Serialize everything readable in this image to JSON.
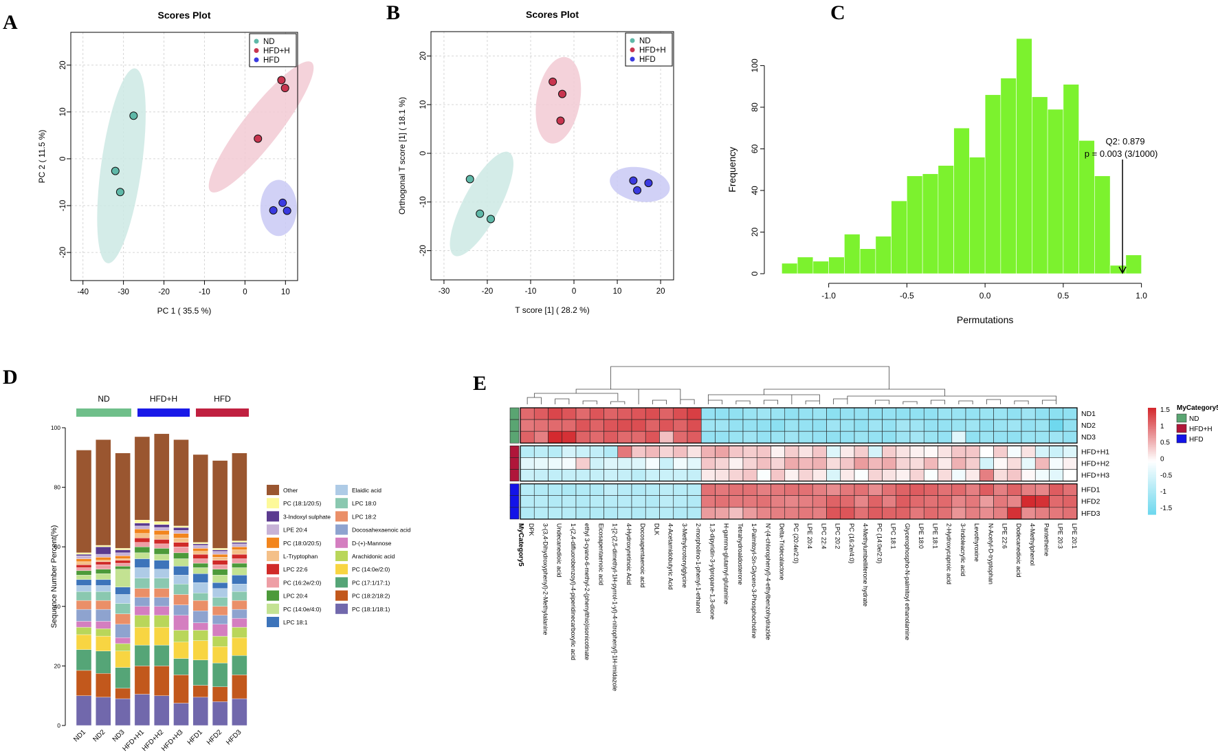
{
  "panel_labels": [
    "A",
    "B",
    "C",
    "D",
    "E"
  ],
  "chart_data": [
    {
      "id": "A",
      "type": "scatter",
      "title": "Scores Plot",
      "xlabel": "PC 1 ( 35.5 %)",
      "ylabel": "PC 2 ( 11.5 %)",
      "xlim": [
        -43,
        13
      ],
      "ylim": [
        -26,
        27
      ],
      "xticks": [
        -40,
        -30,
        -20,
        -10,
        0,
        10
      ],
      "yticks": [
        -20,
        -10,
        0,
        10,
        20
      ],
      "legend": [
        "ND",
        "HFD+H",
        "HFD"
      ],
      "legend_position": "top-right",
      "series": [
        {
          "name": "ND",
          "color": "#5fb8a8",
          "ellipse": "#cde9e4",
          "points": [
            [
              -27.5,
              9.2
            ],
            [
              -32,
              -2.6
            ],
            [
              -30.8,
              -7.1
            ]
          ]
        },
        {
          "name": "HFD+H",
          "color": "#c8354f",
          "ellipse": "#f2cad3",
          "points": [
            [
              9,
              16.8
            ],
            [
              9.9,
              15.1
            ],
            [
              3.2,
              4.3
            ]
          ]
        },
        {
          "name": "HFD",
          "color": "#3a3ae0",
          "ellipse": "#c9c9f4",
          "points": [
            [
              9.3,
              -9.4
            ],
            [
              7,
              -11
            ],
            [
              10.4,
              -11.1
            ]
          ]
        }
      ],
      "ellipses": [
        {
          "cx": -30.5,
          "cy": -1.5,
          "rx": 5,
          "ry": 21,
          "rot": 8
        },
        {
          "cx": 4,
          "cy": 6.8,
          "rx": 4.5,
          "ry": 17.5,
          "rot": 38
        },
        {
          "cx": 8.3,
          "cy": -10.5,
          "rx": 4.5,
          "ry": 6,
          "rot": 0
        }
      ]
    },
    {
      "id": "B",
      "type": "scatter",
      "title": "Scores Plot",
      "xlabel": "T score [1] ( 28.2 %)",
      "ylabel": "Orthogonal T score [1] ( 18.1 %)",
      "xlim": [
        -33,
        23
      ],
      "ylim": [
        -26,
        25
      ],
      "xticks": [
        -30,
        -20,
        -10,
        0,
        10,
        20
      ],
      "yticks": [
        -20,
        -10,
        0,
        10,
        20
      ],
      "legend": [
        "ND",
        "HFD+H",
        "HFD"
      ],
      "legend_position": "top-right",
      "series": [
        {
          "name": "ND",
          "color": "#5fb8a8",
          "ellipse": "#cde9e4",
          "points": [
            [
              -24,
              -5.3
            ],
            [
              -21.7,
              -12.4
            ],
            [
              -19.2,
              -13.5
            ]
          ]
        },
        {
          "name": "HFD+H",
          "color": "#c8354f",
          "ellipse": "#f2cad3",
          "points": [
            [
              -4.9,
              14.7
            ],
            [
              -2.7,
              12.2
            ],
            [
              -3.1,
              6.7
            ]
          ]
        },
        {
          "name": "HFD",
          "color": "#3a3ae0",
          "ellipse": "#c9c9f4",
          "points": [
            [
              13.7,
              -5.6
            ],
            [
              14.6,
              -7.6
            ],
            [
              17.2,
              -6.1
            ]
          ]
        }
      ],
      "ellipses": [
        {
          "cx": -21.3,
          "cy": -10.4,
          "rx": 4.2,
          "ry": 12,
          "rot": 28
        },
        {
          "cx": -3.6,
          "cy": 10.9,
          "rx": 5,
          "ry": 9,
          "rot": 10
        },
        {
          "cx": 15.2,
          "cy": -6.4,
          "rx": 7,
          "ry": 3.5,
          "rot": 10
        }
      ]
    },
    {
      "id": "C",
      "type": "bar",
      "title": "",
      "xlabel": "Permutations",
      "ylabel": "Frequency",
      "xlim": [
        -1.35,
        1.05
      ],
      "ylim": [
        0,
        115
      ],
      "xticks": [
        -1.0,
        -0.5,
        0.0,
        0.5,
        1.0
      ],
      "yticks": [
        0,
        20,
        40,
        60,
        80,
        100
      ],
      "bin_start": -1.3,
      "bin_width": 0.1,
      "values": [
        5,
        8,
        6,
        8,
        19,
        12,
        18,
        35,
        47,
        48,
        52,
        70,
        56,
        86,
        94,
        113,
        85,
        79,
        91,
        64,
        47,
        4,
        9
      ],
      "color": "#7cf22e",
      "annotation_q2": "Q2: 0.879",
      "annotation_p": "p = 0.003 (3/1000)",
      "arrow_x": 0.879
    },
    {
      "id": "D",
      "type": "bar",
      "stacked": true,
      "title": "",
      "xlabel": "",
      "ylabel": "Sequence Number Percent(%)",
      "ylim": [
        0,
        100
      ],
      "yticks": [
        0,
        20,
        40,
        60,
        80,
        100
      ],
      "categories": [
        "ND1",
        "ND2",
        "ND3",
        "HFD+H1",
        "HFD+H2",
        "HFD+H3",
        "HFD1",
        "HFD2",
        "HFD3"
      ],
      "groups": [
        {
          "name": "ND",
          "color": "#6fbf8a"
        },
        {
          "name": "HFD+H",
          "color": "#1a1ae8"
        },
        {
          "name": "HFD",
          "color": "#c02040"
        }
      ],
      "series": [
        {
          "name": "PC (18:1/18:1)",
          "color": "#7168ac",
          "values": [
            10,
            9.5,
            9,
            10.5,
            10,
            7.5,
            9.5,
            8,
            9
          ]
        },
        {
          "name": "PC (18:2/18:2)",
          "color": "#c2581c",
          "values": [
            8.5,
            8,
            3.5,
            9.5,
            10,
            9.5,
            4,
            5,
            8
          ]
        },
        {
          "name": "PC (17:1/17:1)",
          "color": "#55a577",
          "values": [
            7,
            7.5,
            7,
            7,
            7,
            5.5,
            8.5,
            8,
            6.5
          ]
        },
        {
          "name": "PC (14:0e/2:0)",
          "color": "#f8d542",
          "values": [
            5,
            5,
            5.5,
            6,
            6,
            5.5,
            6.5,
            5.5,
            6
          ]
        },
        {
          "name": "Arachidonic acid",
          "color": "#b9d65a",
          "values": [
            2.5,
            2.5,
            2.5,
            4,
            4,
            4,
            3.5,
            3.5,
            3.5
          ]
        },
        {
          "name": "D-(+)-Mannose",
          "color": "#d47ec0",
          "values": [
            2,
            2.5,
            2,
            3,
            3,
            5,
            2.5,
            4,
            3
          ]
        },
        {
          "name": "Docosahexaenoic acid",
          "color": "#8ea3cf",
          "values": [
            4,
            4,
            4.5,
            3,
            3,
            3.5,
            4,
            3,
            3
          ]
        },
        {
          "name": "LPC 18:2",
          "color": "#ea8f68",
          "values": [
            3,
            3,
            3.5,
            3,
            3,
            3.5,
            3.5,
            3,
            3
          ]
        },
        {
          "name": "LPC 18:0",
          "color": "#8ac8b0",
          "values": [
            3,
            3,
            3.5,
            3.5,
            3.5,
            3.5,
            2.5,
            3,
            3
          ]
        },
        {
          "name": "Elaidic acid",
          "color": "#aecbe6",
          "values": [
            2,
            2,
            3,
            3.5,
            3,
            3,
            3.5,
            3,
            2.5
          ]
        },
        {
          "name": "LPC 18:1",
          "color": "#3d74ba",
          "values": [
            2,
            2,
            2.5,
            3,
            3,
            3,
            3,
            2,
            3
          ]
        },
        {
          "name": "PC (14:0e/4:0)",
          "color": "#c3e292",
          "values": [
            1.5,
            2,
            6,
            2,
            2,
            2.5,
            2,
            2.5,
            2.5
          ]
        },
        {
          "name": "LPC 20:4",
          "color": "#4c9a3a",
          "values": [
            1.5,
            1.5,
            1,
            2,
            2,
            2,
            1.5,
            2,
            1.5
          ]
        },
        {
          "name": "PC (16:2e/2:0)",
          "color": "#ee9ea5",
          "values": [
            1,
            1.5,
            1,
            1.5,
            1.5,
            2,
            1.5,
            1.5,
            1.5
          ]
        },
        {
          "name": "LPC 22:6",
          "color": "#d02a28",
          "values": [
            1,
            1,
            1,
            1.5,
            1.5,
            1.5,
            1.5,
            1.5,
            1.5
          ]
        },
        {
          "name": "L-Tryptophan",
          "color": "#f4c088",
          "values": [
            1,
            0.5,
            0.5,
            1.5,
            1.5,
            1.5,
            1,
            1,
            1.5
          ]
        },
        {
          "name": "PC (18:0/20:5)",
          "color": "#f2851d",
          "values": [
            1,
            1,
            1,
            1.5,
            1.5,
            1.5,
            1,
            1,
            1
          ]
        },
        {
          "name": "LPE 20:4",
          "color": "#c7b2d6",
          "values": [
            1,
            1,
            1,
            1,
            1,
            1,
            1,
            1,
            1
          ]
        },
        {
          "name": "3-Indoxyl sulphate",
          "color": "#5b3b8f",
          "values": [
            0.5,
            2.5,
            1,
            1,
            1,
            1,
            0.5,
            0.5,
            0.5
          ]
        },
        {
          "name": "PC (18:1/20:5)",
          "color": "#fdf99a",
          "values": [
            0.5,
            0.5,
            0.5,
            1,
            1,
            0.5,
            0.5,
            0.5,
            0.5
          ]
        },
        {
          "name": "Other",
          "color": "#9a5630",
          "values": [
            34.5,
            35.5,
            32,
            28,
            29.5,
            29,
            29.5,
            29.5,
            29.5
          ]
        }
      ]
    },
    {
      "id": "E",
      "type": "heatmap",
      "title": "",
      "annotation_title": "MyCategory5",
      "rows": [
        "ND1",
        "ND2",
        "ND3",
        "HFD+H1",
        "HFD+H2",
        "HFD+H3",
        "HFD1",
        "HFD2",
        "HFD3"
      ],
      "row_groups": [
        "ND",
        "ND",
        "ND",
        "HFD+H",
        "HFD+H",
        "HFD+H",
        "HFD",
        "HFD",
        "HFD"
      ],
      "group_colors": {
        "ND": "#5aa572",
        "HFD+H": "#b0163a",
        "HFD": "#1313e8"
      },
      "columns": [
        "DPK",
        "3-(3,4-Dihydroxyphenyl)-2-Methylalanine",
        "Undecanedioic acid",
        "1-(2,4-difluorobenzoyl)-4-piperidinecarboxylic acid",
        "ethyl 3-cyano-6-methyl-2-(phenylthio)isonicotinate",
        "Eicosapentaenoic acid",
        "1-[2-(2,5-dimethyl-1H-pyrrol-1-yl)-4-nitrophenyl]-1H-imidazole",
        "4-Hydroxyretinoic Acid",
        "Docosapentaenoic acid",
        "DLK",
        "4-Acetamidobutyric Acid",
        "3-Methylcrotonylglycine",
        "2-morpholino-1-phenyl-1-ethanol",
        "1,3-dipyridin-3-ylpropane-1,3-dione",
        "H-gamma-glutamyl-glutamine",
        "Tetrahydroaldosterone",
        "1-Palmitoyl-Sn-Glycero-3-Phosphocholine",
        "N'-(4-chlorophenyl)-4-ethylbenzohydrazide",
        "Delta-Tridecalactone",
        "PC (20:4e/2:0)",
        "LPE 20:4",
        "LPC 22:4",
        "LPC 20:2",
        "PC (16:2e/4:0)",
        "4-Methylumbelliferone hydrate",
        "PC (14:0e/2:0)",
        "LPC 18:1",
        "Glycerophospho-N-palmitoyl ethanolamine",
        "LPE 18:0",
        "LPE 18:1",
        "2-Hydroxycaproic acid",
        "3-Indoleacrylic acid",
        "Levothyroxine",
        "N-Acetyl-D-tryptophan",
        "LPE 22:6",
        "Dodecanedioic acid",
        "4-Methylphenol",
        "Pantetheine",
        "LPE 20:3",
        "LPE 20:1"
      ],
      "values": [
        [
          1.05,
          1.15,
          1.3,
          1.2,
          1.05,
          1.2,
          1.1,
          1.15,
          1.2,
          1.25,
          1.1,
          1.25,
          1.35,
          -1.1,
          -1.15,
          -1.15,
          -1.05,
          -1.0,
          -1.05,
          -1.15,
          -1.1,
          -1.05,
          -1.2,
          -1.1,
          -1.1,
          -1.15,
          -1.1,
          -1.15,
          -1.15,
          -1.15,
          -1.05,
          -1.05,
          -1.1,
          -1.05,
          -1.05,
          -1.15,
          -1.0,
          -1.15,
          -1.2,
          -1.15
        ],
        [
          0.95,
          1.0,
          1.05,
          1.05,
          1.2,
          1.1,
          1.2,
          1.25,
          1.25,
          1.1,
          1.2,
          1.1,
          1.25,
          -1.0,
          -1.0,
          -1.1,
          -1.1,
          -1.15,
          -1.2,
          -1.05,
          -1.1,
          -1.15,
          -1.0,
          -1.05,
          -1.15,
          -1.0,
          -1.1,
          -0.95,
          -1.0,
          -1.1,
          -1.1,
          -1.05,
          -1.0,
          -1.15,
          -1.05,
          -1.0,
          -1.1,
          -1.05,
          -1.5,
          -1.15
        ],
        [
          1.1,
          0.9,
          1.55,
          1.45,
          1.1,
          1.05,
          1.15,
          1.05,
          1.05,
          1.2,
          0.45,
          1.05,
          1.15,
          -1.1,
          -1.1,
          -1.05,
          -1.0,
          -1.1,
          -1.05,
          -1.0,
          -1.05,
          -1.1,
          -1.15,
          -1.1,
          -1.05,
          -1.1,
          -1.15,
          -1.0,
          -0.95,
          -1.05,
          -1.1,
          -0.3,
          -1.15,
          -1.05,
          -1.1,
          -1.15,
          -1.05,
          -1.05,
          -1.0,
          -1.1
        ],
        [
          -0.75,
          -0.7,
          -0.75,
          -0.45,
          -0.55,
          -0.65,
          -0.8,
          0.95,
          0.4,
          0.5,
          0.3,
          0.45,
          0.2,
          0.55,
          0.65,
          0.4,
          0.35,
          0.4,
          0.1,
          0.35,
          0.2,
          0.4,
          -0.35,
          0.15,
          0.35,
          -0.45,
          0.35,
          0.2,
          0.1,
          0.05,
          0.2,
          0.4,
          0.4,
          0.0,
          0.35,
          -0.1,
          0.2,
          -0.45,
          -0.55,
          -0.35
        ],
        [
          -0.3,
          -0.25,
          -0.2,
          -0.1,
          0.35,
          -0.5,
          -0.35,
          -0.4,
          -0.35,
          -0.1,
          -0.55,
          -0.15,
          -0.3,
          0.4,
          0.3,
          0.1,
          0.3,
          0.45,
          0.3,
          0.6,
          0.5,
          0.55,
          0.25,
          0.4,
          0.7,
          0.5,
          0.6,
          0.3,
          0.25,
          0.5,
          0.15,
          0.55,
          0.35,
          -0.45,
          0.05,
          0.25,
          -0.25,
          0.5,
          -0.1,
          0.1
        ],
        [
          -0.55,
          -0.6,
          -0.65,
          -0.6,
          -0.6,
          -0.6,
          -0.55,
          -0.6,
          -0.7,
          -0.55,
          -0.55,
          -0.55,
          -0.6,
          0.15,
          0.2,
          0.3,
          0.4,
          -0.05,
          0.4,
          0.1,
          0.3,
          0.15,
          -0.4,
          0.15,
          -0.05,
          0.3,
          0.2,
          0.1,
          0.3,
          -0.05,
          0.25,
          -0.15,
          0.15,
          0.9,
          0.25,
          0.4,
          0.05,
          -0.15,
          -0.3,
          0.0
        ],
        [
          -0.75,
          -0.8,
          -0.8,
          -0.85,
          -0.8,
          -0.8,
          -0.65,
          -0.75,
          -0.8,
          -0.75,
          -0.7,
          -0.75,
          -0.75,
          1.0,
          0.95,
          1.0,
          1.0,
          0.9,
          0.95,
          1.0,
          1.0,
          0.9,
          0.8,
          0.95,
          1.0,
          0.8,
          1.0,
          1.1,
          1.15,
          1.1,
          1.0,
          1.05,
          0.9,
          1.15,
          0.9,
          1.1,
          0.9,
          0.85,
          1.15,
          1.0
        ],
        [
          -0.75,
          -0.75,
          -0.8,
          -0.75,
          -0.8,
          -0.75,
          -0.75,
          -0.75,
          -0.75,
          -0.8,
          -0.7,
          -0.75,
          -0.8,
          0.95,
          1.0,
          0.95,
          0.95,
          1.0,
          0.9,
          0.85,
          0.9,
          0.95,
          1.1,
          1.05,
          0.85,
          1.1,
          0.9,
          1.15,
          1.05,
          1.0,
          1.05,
          0.85,
          0.95,
          0.7,
          0.95,
          0.85,
          1.5,
          1.45,
          1.05,
          1.1
        ],
        [
          -0.8,
          -0.75,
          -0.75,
          -0.75,
          -0.8,
          -0.8,
          -0.8,
          -0.75,
          -0.8,
          -0.75,
          -0.75,
          -0.8,
          -0.8,
          0.7,
          0.65,
          0.45,
          0.7,
          0.85,
          0.9,
          0.9,
          0.95,
          0.9,
          1.2,
          1.2,
          1.0,
          1.15,
          1.1,
          1.1,
          0.95,
          1.05,
          1.0,
          0.75,
          0.9,
          0.8,
          0.9,
          1.45,
          0.8,
          0.9,
          0.95,
          1.0
        ]
      ],
      "color_scale": {
        "min": -1.5,
        "max": 1.5,
        "low": "#6fd8ee",
        "mid": "#ffffff",
        "high": "#d42a2f"
      },
      "scale_ticks": [
        "1.5",
        "1",
        "0.5",
        "0",
        "-0.5",
        "-1",
        "-1.5"
      ],
      "legend": [
        "ND",
        "HFD+H",
        "HFD"
      ]
    }
  ]
}
